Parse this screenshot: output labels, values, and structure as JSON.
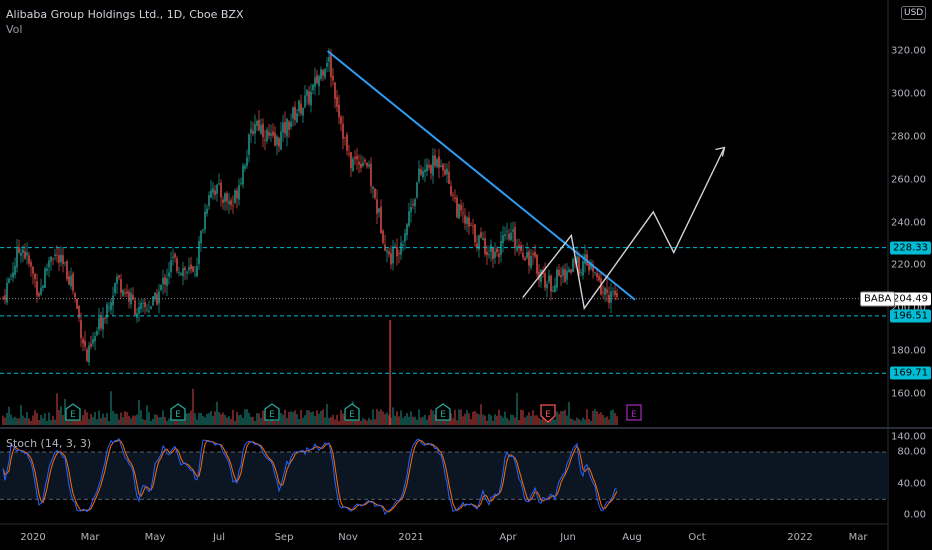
{
  "header": {
    "title": "Alibaba Group Holdings Ltd., 1D, Cboe BZX",
    "volume_label": "Vol",
    "currency_badge": "USD",
    "stoch_label": "Stoch (14, 3, 3)"
  },
  "colors": {
    "background": "#000000",
    "up": "#26a69a",
    "down": "#ef5350",
    "trendline": "#2e9cf2",
    "projection": "#d1d4dc",
    "dashed_levels": "#00bcd4",
    "stoch_k": "#2962ff",
    "stoch_d": "#ff6d00",
    "earnings_green": "#26a69a",
    "earnings_red": "#ef5350",
    "earnings_purple": "#9c27b0"
  },
  "price_axis": {
    "ticks": [
      "320.00",
      "300.00",
      "280.00",
      "260.00",
      "240.00",
      "220.00",
      "200.00",
      "180.00",
      "160.00",
      "140.00"
    ],
    "tick_values": [
      320,
      300,
      280,
      260,
      240,
      220,
      200,
      180,
      160,
      140
    ],
    "range": [
      133,
      340
    ]
  },
  "stoch_axis": {
    "ticks": [
      "80.00",
      "40.00",
      "0.00"
    ],
    "tick_values": [
      80,
      40,
      0
    ],
    "levels": [
      80,
      20
    ],
    "range": [
      -6,
      101
    ]
  },
  "time_axis": {
    "labels": [
      "2020",
      "Mar",
      "May",
      "Jul",
      "Sep",
      "Nov",
      "2021",
      "Apr",
      "Jun",
      "Aug",
      "Oct",
      "2022",
      "Mar"
    ]
  },
  "price_badges": [
    {
      "label": "228.33",
      "value": 228.33,
      "style": "cyan"
    },
    {
      "label": "204.49",
      "value": 204.49,
      "style": "white"
    },
    {
      "label": "196.51",
      "value": 196.51,
      "style": "cyan"
    },
    {
      "label": "169.71",
      "value": 169.71,
      "style": "cyan"
    }
  ],
  "symbol_label": "BABA",
  "earnings_markers": [
    {
      "label": "E",
      "kind": "green"
    },
    {
      "label": "E",
      "kind": "green"
    },
    {
      "label": "E",
      "kind": "green"
    },
    {
      "label": "E",
      "kind": "green"
    },
    {
      "label": "E",
      "kind": "green"
    },
    {
      "label": "E",
      "kind": "red"
    },
    {
      "label": "E",
      "kind": "purple"
    }
  ],
  "chart_data": {
    "type": "candlestick",
    "title": "Alibaba Group Holdings Ltd., 1D, Cboe BZX",
    "price_path": [
      {
        "x": "2019-12-31",
        "y": 205
      },
      {
        "x": "2020-01-17",
        "y": 230
      },
      {
        "x": "2020-02-03",
        "y": 207
      },
      {
        "x": "2020-02-14",
        "y": 227
      },
      {
        "x": "2020-03-03",
        "y": 214
      },
      {
        "x": "2020-03-18",
        "y": 176
      },
      {
        "x": "2020-04-01",
        "y": 196
      },
      {
        "x": "2020-04-15",
        "y": 214
      },
      {
        "x": "2020-05-05",
        "y": 198
      },
      {
        "x": "2020-05-20",
        "y": 203
      },
      {
        "x": "2020-06-05",
        "y": 222
      },
      {
        "x": "2020-06-25",
        "y": 215
      },
      {
        "x": "2020-07-10",
        "y": 258
      },
      {
        "x": "2020-07-31",
        "y": 248
      },
      {
        "x": "2020-08-21",
        "y": 288
      },
      {
        "x": "2020-09-08",
        "y": 276
      },
      {
        "x": "2020-09-25",
        "y": 290
      },
      {
        "x": "2020-10-12",
        "y": 300
      },
      {
        "x": "2020-10-27",
        "y": 318
      },
      {
        "x": "2020-11-05",
        "y": 296
      },
      {
        "x": "2020-11-16",
        "y": 268
      },
      {
        "x": "2020-12-01",
        "y": 270
      },
      {
        "x": "2020-12-23",
        "y": 223
      },
      {
        "x": "2021-01-04",
        "y": 232
      },
      {
        "x": "2021-01-20",
        "y": 262
      },
      {
        "x": "2021-02-10",
        "y": 270
      },
      {
        "x": "2021-02-25",
        "y": 245
      },
      {
        "x": "2021-03-15",
        "y": 232
      },
      {
        "x": "2021-03-31",
        "y": 226
      },
      {
        "x": "2021-04-15",
        "y": 234
      },
      {
        "x": "2021-05-05",
        "y": 222
      },
      {
        "x": "2021-05-20",
        "y": 211
      },
      {
        "x": "2021-06-10",
        "y": 219
      },
      {
        "x": "2021-06-25",
        "y": 221
      },
      {
        "x": "2021-07-09",
        "y": 208
      },
      {
        "x": "2021-07-23",
        "y": 204.49
      }
    ],
    "volume_spikes": [
      {
        "x": "2020-12-24",
        "label": "max volume"
      }
    ],
    "trendline": [
      {
        "x": "2020-10-27",
        "y": 320
      },
      {
        "x": "2021-08-08",
        "y": 204
      }
    ],
    "projection_path": [
      {
        "x": "2021-04-26",
        "y": 205
      },
      {
        "x": "2021-06-10",
        "y": 234
      },
      {
        "x": "2021-06-22",
        "y": 200
      },
      {
        "x": "2021-08-25",
        "y": 245
      },
      {
        "x": "2021-09-13",
        "y": 226
      },
      {
        "x": "2021-10-30",
        "y": 275
      }
    ],
    "horizontal_levels": [
      228.33,
      196.51,
      169.71
    ],
    "last_price": 204.49,
    "stochastic": {
      "k_period": 14,
      "d_period": 3,
      "smooth": 3,
      "upper_band": 80,
      "lower_band": 20
    },
    "ylabel": "",
    "xlabel": "",
    "ylim": [
      133,
      340
    ],
    "grid": false
  }
}
